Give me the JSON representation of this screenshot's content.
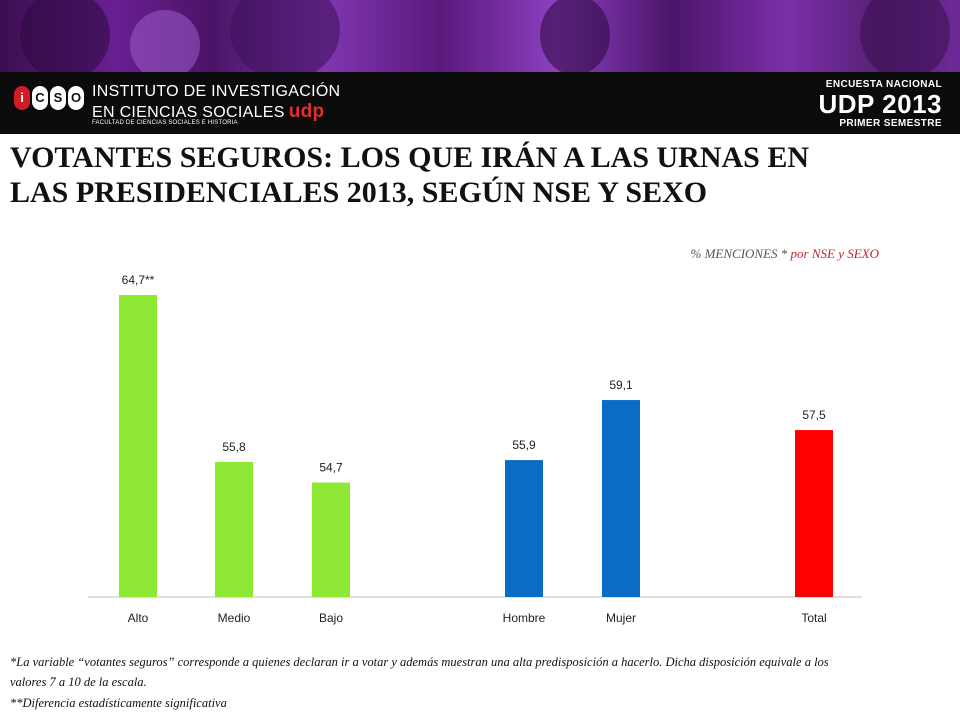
{
  "header": {
    "institute_line1": "INSTITUTO DE INVESTIGACIÓN",
    "institute_line2": "EN CIENCIAS SOCIALES",
    "institute_udp": "udp",
    "institute_sub": "FACULTAD DE CIENCIAS SOCIALES E HISTORIA",
    "logo_letters": [
      "i",
      "C",
      "S",
      "O"
    ],
    "survey_line1": "ENCUESTA NACIONAL",
    "survey_line2": "UDP 2013",
    "survey_line3": "PRIMER SEMESTRE"
  },
  "slide": {
    "title_line1": "VOTANTES SEGUROS: LOS QUE IRÁN A LAS URNAS EN",
    "title_line2": "LAS PRESIDENCIALES 2013, SEGÚN NSE Y SEXO",
    "subtitle_main": "% MENCIONES *",
    "subtitle_accent": "por NSE y SEXO",
    "footnote1": "*La variable “votantes seguros” corresponde a quienes declaran ir a votar y además muestran una alta predisposición a hacerlo.  Dicha disposición equivale a los valores  7 a 10 de la escala.",
    "footnote2": "**Diferencia estadísticamente significativa"
  },
  "colors": {
    "nse": "#8fe833",
    "sex": "#0a6cc2",
    "total": "#ff0000",
    "red_accent": "#c0262d"
  },
  "chart_data": {
    "type": "bar",
    "categories": [
      "Alto",
      "Medio",
      "Bajo",
      "Hombre",
      "Mujer",
      "Total"
    ],
    "values": [
      64.7,
      55.8,
      54.7,
      55.9,
      59.1,
      57.5
    ],
    "data_labels": [
      "64,7**",
      "55,8",
      "54,7",
      "55,9",
      "59,1",
      "57,5"
    ],
    "groups": [
      "nse",
      "nse",
      "nse",
      "sex",
      "sex",
      "total"
    ],
    "ylim": [
      48.6,
      65.5
    ],
    "grid": false,
    "xlabel": "",
    "ylabel": ""
  }
}
